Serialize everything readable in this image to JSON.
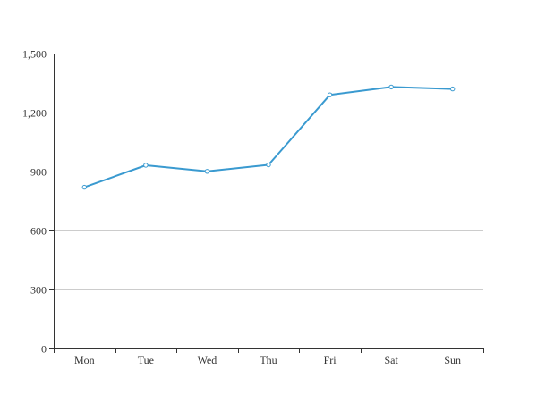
{
  "chart_data": {
    "type": "line",
    "title": "",
    "xlabel": "",
    "ylabel": "",
    "categories": [
      "Mon",
      "Tue",
      "Wed",
      "Thu",
      "Fri",
      "Sat",
      "Sun"
    ],
    "series": [
      {
        "values": [
          820,
          932,
          901,
          934,
          1290,
          1330,
          1320
        ]
      }
    ],
    "ylim": [
      0,
      1500
    ],
    "yticks": [
      0,
      300,
      600,
      900,
      1200,
      1500
    ],
    "ytick_labels": [
      "0",
      "300",
      "600",
      "900",
      "1,200",
      "1,500"
    ],
    "grid": true,
    "legend": "none",
    "colors": {
      "series": "#3a9ad0"
    }
  }
}
